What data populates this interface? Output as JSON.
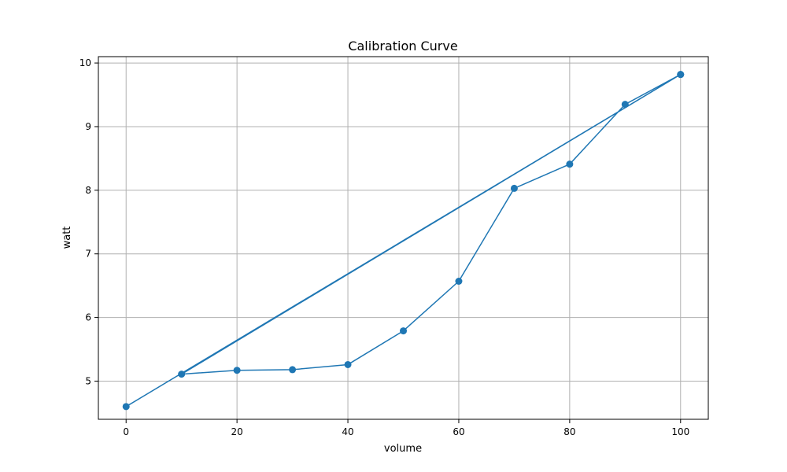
{
  "chart_data": {
    "type": "line",
    "title": "Calibration Curve",
    "xlabel": "volume",
    "ylabel": "watt",
    "xlim": [
      -5,
      105
    ],
    "ylim": [
      4.4,
      10.1
    ],
    "x_ticks": [
      0,
      20,
      40,
      60,
      80,
      100
    ],
    "y_ticks": [
      5,
      6,
      7,
      8,
      9,
      10
    ],
    "grid": true,
    "legend": "none",
    "series": [
      {
        "color": "#1f77b4",
        "marker": "circle",
        "points": [
          {
            "x": 0,
            "y": 4.6
          },
          {
            "x": 100,
            "y": 9.82
          },
          {
            "x": 90,
            "y": 9.35
          },
          {
            "x": 80,
            "y": 8.41
          },
          {
            "x": 70,
            "y": 8.03
          },
          {
            "x": 60,
            "y": 6.57
          },
          {
            "x": 50,
            "y": 5.79
          },
          {
            "x": 40,
            "y": 5.26
          },
          {
            "x": 30,
            "y": 5.18
          },
          {
            "x": 20,
            "y": 5.17
          },
          {
            "x": 10,
            "y": 5.11
          },
          {
            "x": 100,
            "y": 9.82
          }
        ]
      }
    ]
  }
}
